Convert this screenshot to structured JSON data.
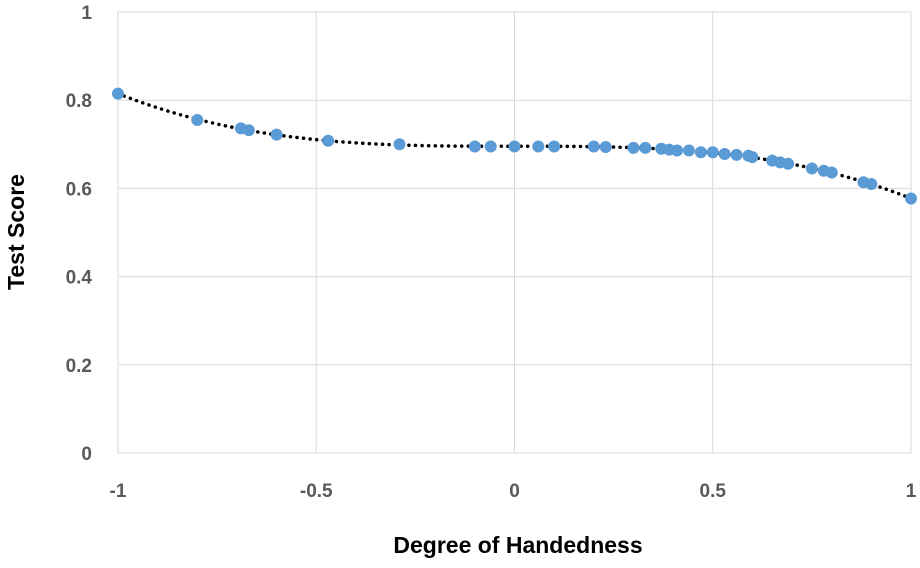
{
  "chart_data": {
    "type": "scatter",
    "title": "",
    "xlabel": "Degree of Handedness",
    "ylabel": "Test Score",
    "xlim": [
      -1,
      1
    ],
    "ylim": [
      0,
      1
    ],
    "x_ticks": [
      -1,
      -0.5,
      0,
      0.5,
      1
    ],
    "y_ticks": [
      0,
      0.2,
      0.4,
      0.6,
      0.8,
      1
    ],
    "x_tick_labels": [
      "-1",
      "-0.5",
      "0",
      "0.5",
      "1"
    ],
    "y_tick_labels": [
      "0",
      "0.2",
      "0.4",
      "0.6",
      "0.8",
      "1"
    ],
    "grid": true,
    "legend": "none",
    "marker_color": "#5b9bd5",
    "trendline": {
      "style": "dotted",
      "color": "#000000",
      "kind": "polynomial"
    },
    "series": [
      {
        "x": [
          -1.0,
          -0.8,
          -0.69,
          -0.67,
          -0.6,
          -0.47,
          -0.29,
          -0.1,
          -0.06,
          0.0,
          0.06,
          0.1,
          0.2,
          0.23,
          0.3,
          0.33,
          0.37,
          0.39,
          0.41,
          0.44,
          0.47,
          0.5,
          0.53,
          0.56,
          0.59,
          0.6,
          0.65,
          0.67,
          0.69,
          0.75,
          0.78,
          0.8,
          0.88,
          0.9,
          1.0
        ],
        "y": [
          0.815,
          0.755,
          0.736,
          0.732,
          0.722,
          0.708,
          0.7,
          0.695,
          0.695,
          0.695,
          0.695,
          0.695,
          0.695,
          0.694,
          0.692,
          0.692,
          0.69,
          0.688,
          0.686,
          0.686,
          0.682,
          0.682,
          0.678,
          0.676,
          0.674,
          0.671,
          0.663,
          0.659,
          0.656,
          0.645,
          0.64,
          0.636,
          0.614,
          0.61,
          0.577
        ]
      }
    ]
  }
}
